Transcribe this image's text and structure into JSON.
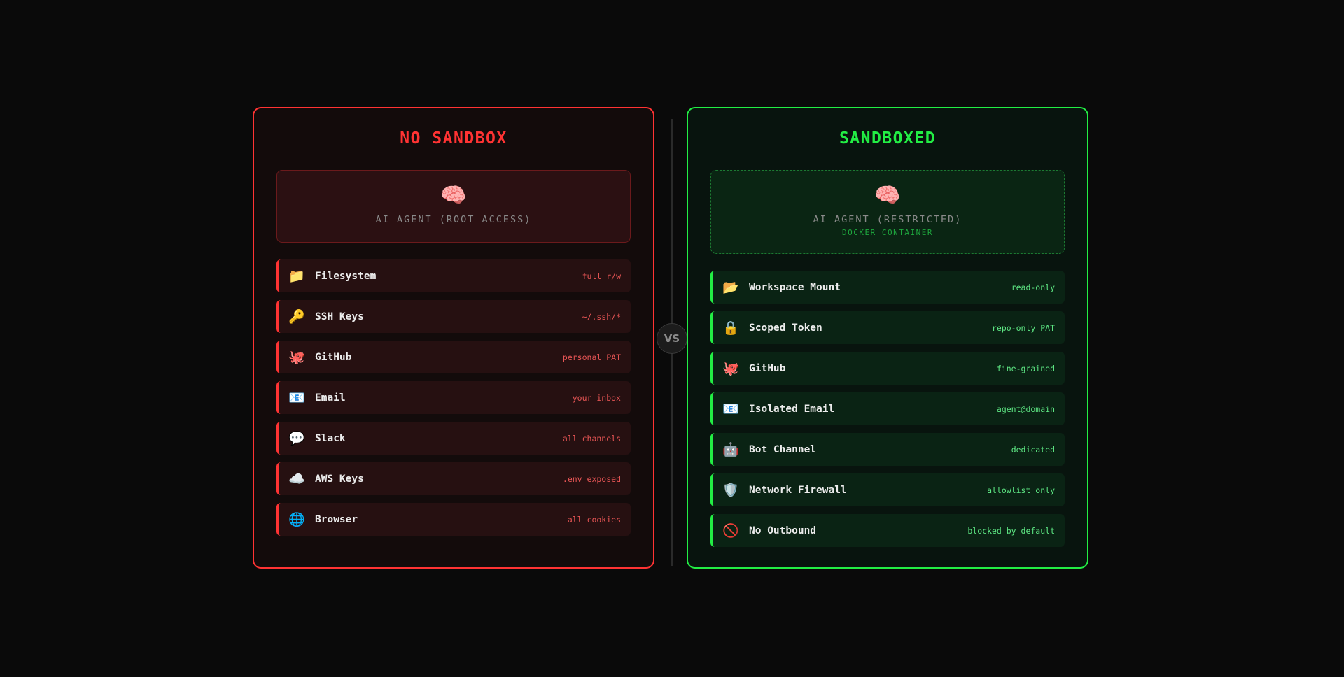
{
  "left": {
    "title": "NO SANDBOX",
    "agent_icon": "🧠",
    "agent_label": "AI AGENT (ROOT ACCESS)",
    "accent": "#ff3333",
    "items": [
      {
        "icon": "📁",
        "icon_name": "folder-icon",
        "label": "Filesystem",
        "value": "full r/w"
      },
      {
        "icon": "🔑",
        "icon_name": "key-icon",
        "label": "SSH Keys",
        "value": "~/.ssh/*"
      },
      {
        "icon": "🐙",
        "icon_name": "octopus-icon",
        "label": "GitHub",
        "value": "personal PAT"
      },
      {
        "icon": "📧",
        "icon_name": "email-icon",
        "label": "Email",
        "value": "your inbox"
      },
      {
        "icon": "💬",
        "icon_name": "speech-bubble-icon",
        "label": "Slack",
        "value": "all channels"
      },
      {
        "icon": "☁️",
        "icon_name": "cloud-icon",
        "label": "AWS Keys",
        "value": ".env exposed"
      },
      {
        "icon": "🌐",
        "icon_name": "globe-icon",
        "label": "Browser",
        "value": "all cookies"
      }
    ]
  },
  "divider": {
    "label": "VS"
  },
  "right": {
    "title": "SANDBOXED",
    "agent_icon": "🧠",
    "agent_label": "AI AGENT (RESTRICTED)",
    "agent_sublabel": "DOCKER CONTAINER",
    "accent": "#22ee44",
    "items": [
      {
        "icon": "📂",
        "icon_name": "open-folder-icon",
        "label": "Workspace Mount",
        "value": "read-only"
      },
      {
        "icon": "🔒",
        "icon_name": "lock-icon",
        "label": "Scoped Token",
        "value": "repo-only PAT"
      },
      {
        "icon": "🐙",
        "icon_name": "octopus-icon",
        "label": "GitHub",
        "value": "fine-grained"
      },
      {
        "icon": "📧",
        "icon_name": "email-icon",
        "label": "Isolated Email",
        "value": "agent@domain"
      },
      {
        "icon": "🤖",
        "icon_name": "robot-icon",
        "label": "Bot Channel",
        "value": "dedicated"
      },
      {
        "icon": "🛡️",
        "icon_name": "shield-icon",
        "label": "Network Firewall",
        "value": "allowlist only"
      },
      {
        "icon": "🚫",
        "icon_name": "prohibited-icon",
        "label": "No Outbound",
        "value": "blocked by default"
      }
    ]
  }
}
